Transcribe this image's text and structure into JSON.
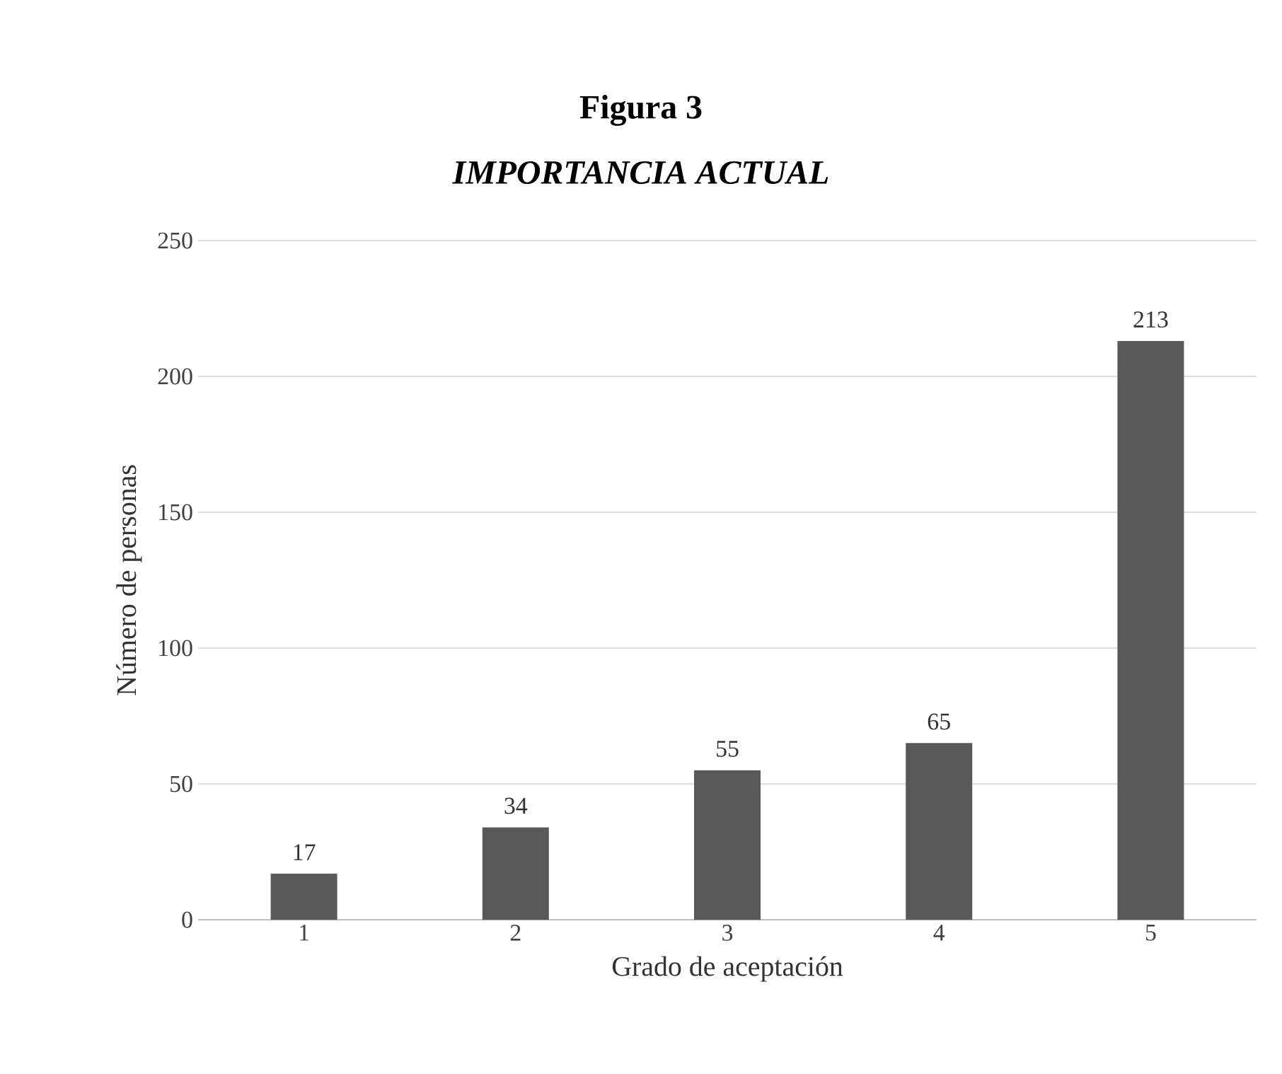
{
  "chart_data": {
    "type": "bar",
    "title": "Figura 3",
    "subtitle": "IMPORTANCIA ACTUAL",
    "xlabel": "Grado de aceptación",
    "ylabel": "Número de personas",
    "categories": [
      "1",
      "2",
      "3",
      "4",
      "5"
    ],
    "values": [
      17,
      34,
      55,
      65,
      213
    ],
    "color": "#595959",
    "ylim": [
      0,
      250
    ],
    "yticks": [
      0,
      50,
      100,
      150,
      200,
      250
    ],
    "grid": "y",
    "data_labels": true
  }
}
